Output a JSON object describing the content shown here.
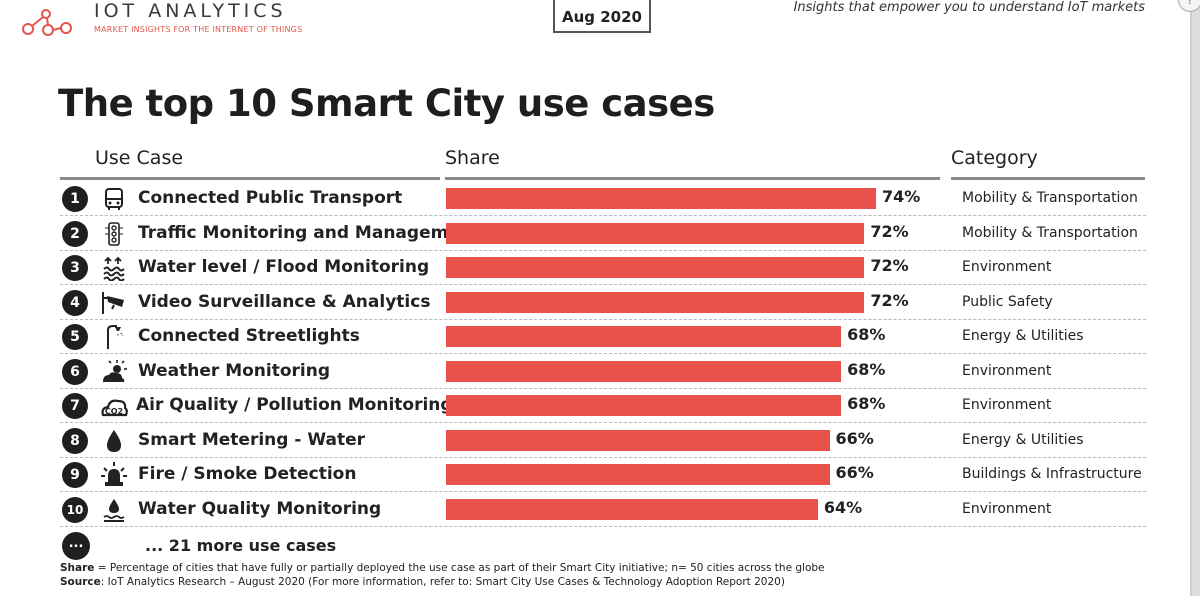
{
  "header": {
    "brand": "IOT ANALYTICS",
    "brand_sub": "MARKET INSIGHTS FOR THE INTERNET OF THINGS",
    "date": "Aug 2020",
    "tagline": "Insights that empower you to understand IoT markets"
  },
  "columns": {
    "use_case": "Use Case",
    "share": "Share",
    "category": "Category"
  },
  "chart_data": {
    "type": "bar",
    "orientation": "horizontal",
    "title": "The top 10 Smart City use cases",
    "xlabel": "Share",
    "ylabel": "Use Case",
    "xlim": [
      0,
      100
    ],
    "rows": [
      {
        "rank": "1",
        "icon": "bus-icon",
        "use_case": "Connected Public Transport",
        "value": 74,
        "label": "74%",
        "category": "Mobility & Transportation"
      },
      {
        "rank": "2",
        "icon": "traffic-light-icon",
        "use_case": "Traffic Monitoring and Management",
        "value": 72,
        "label": "72%",
        "category": "Mobility & Transportation"
      },
      {
        "rank": "3",
        "icon": "flood-icon",
        "use_case": "Water level / Flood Monitoring",
        "value": 72,
        "label": "72%",
        "category": "Environment"
      },
      {
        "rank": "4",
        "icon": "security-camera-icon",
        "use_case": "Video Surveillance & Analytics",
        "value": 72,
        "label": "72%",
        "category": "Public Safety"
      },
      {
        "rank": "5",
        "icon": "streetlight-icon",
        "use_case": "Connected Streetlights",
        "value": 68,
        "label": "68%",
        "category": "Energy & Utilities"
      },
      {
        "rank": "6",
        "icon": "weather-icon",
        "use_case": "Weather Monitoring",
        "value": 68,
        "label": "68%",
        "category": "Environment"
      },
      {
        "rank": "7",
        "icon": "co2-cloud-icon",
        "use_case": "Air Quality / Pollution Monitoring",
        "value": 68,
        "label": "68%",
        "category": "Environment"
      },
      {
        "rank": "8",
        "icon": "water-drop-icon",
        "use_case": "Smart Metering - Water",
        "value": 66,
        "label": "66%",
        "category": "Energy & Utilities"
      },
      {
        "rank": "9",
        "icon": "alarm-siren-icon",
        "use_case": "Fire / Smoke Detection",
        "value": 66,
        "label": "66%",
        "category": "Buildings & Infrastructure"
      },
      {
        "rank": "10",
        "icon": "water-quality-icon",
        "use_case": "Water Quality Monitoring",
        "value": 64,
        "label": "64%",
        "category": "Environment"
      }
    ],
    "bar_color": "#e8524a"
  },
  "more": {
    "badge": "...",
    "text": "... 21 more use cases"
  },
  "footnotes": {
    "share_label": "Share",
    "share_text": " = Percentage of cities that have fully or partially deployed the use case as part of their Smart City initiative; n= 50 cities across the globe",
    "source_label": "Source",
    "source_text": ": IoT Analytics Research – August 2020 (For more information, refer to: Smart City Use Cases & Technology Adoption Report 2020)"
  }
}
